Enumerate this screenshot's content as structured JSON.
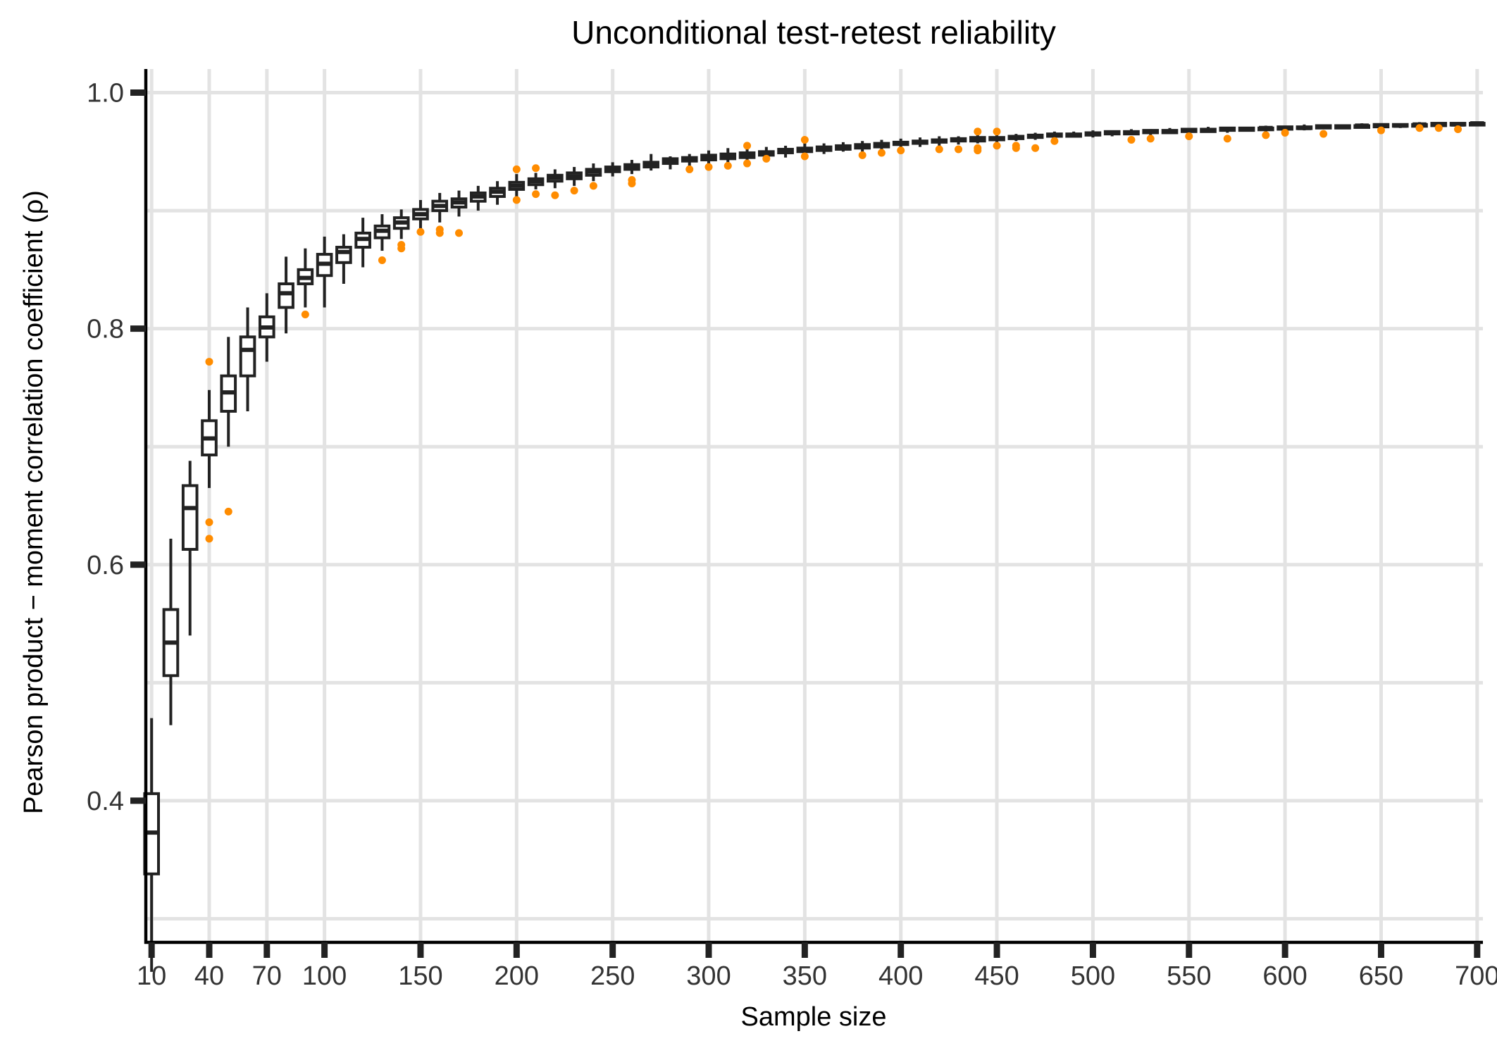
{
  "chart_data": {
    "type": "box",
    "title": "Unconditional test-retest reliability",
    "xlabel": "Sample size",
    "ylabel": "Pearson product − moment correlation coefficient  (ρ)",
    "xlim": [
      7,
      703
    ],
    "ylim": [
      0.28,
      1.02
    ],
    "x_ticks": [
      10,
      40,
      70,
      100,
      150,
      200,
      250,
      300,
      350,
      400,
      450,
      500,
      550,
      600,
      650,
      700
    ],
    "x_tick_labels": [
      "10",
      "40",
      "70",
      "100",
      "150",
      "200",
      "250",
      "300",
      "350",
      "400",
      "450",
      "500",
      "550",
      "600",
      "650",
      "700"
    ],
    "y_ticks": [
      0.4,
      0.6,
      0.8,
      1.0
    ],
    "y_tick_labels": [
      "0.4",
      "0.6",
      "0.8",
      "1.0"
    ],
    "y_minor_grid": [
      0.3,
      0.5,
      0.7,
      0.9
    ],
    "grid": true,
    "colors": {
      "box": "#222222",
      "outlier": "#ff8c00",
      "grid": "#e3e3e3"
    },
    "boxes": [
      {
        "x": 10,
        "lo": 0.255,
        "q1": 0.338,
        "med": 0.373,
        "q3": 0.406,
        "hi": 0.47
      },
      {
        "x": 20,
        "lo": 0.464,
        "q1": 0.506,
        "med": 0.534,
        "q3": 0.562,
        "hi": 0.622
      },
      {
        "x": 30,
        "lo": 0.54,
        "q1": 0.613,
        "med": 0.648,
        "q3": 0.667,
        "hi": 0.688
      },
      {
        "x": 40,
        "lo": 0.665,
        "q1": 0.693,
        "med": 0.707,
        "q3": 0.722,
        "hi": 0.748,
        "outliers": [
          0.772,
          0.636,
          0.622
        ]
      },
      {
        "x": 50,
        "lo": 0.7,
        "q1": 0.73,
        "med": 0.746,
        "q3": 0.76,
        "hi": 0.793,
        "outliers": [
          0.645
        ]
      },
      {
        "x": 60,
        "lo": 0.73,
        "q1": 0.76,
        "med": 0.782,
        "q3": 0.793,
        "hi": 0.818
      },
      {
        "x": 70,
        "lo": 0.772,
        "q1": 0.793,
        "med": 0.801,
        "q3": 0.81,
        "hi": 0.83
      },
      {
        "x": 80,
        "lo": 0.796,
        "q1": 0.818,
        "med": 0.83,
        "q3": 0.838,
        "hi": 0.861
      },
      {
        "x": 90,
        "lo": 0.818,
        "q1": 0.838,
        "med": 0.843,
        "q3": 0.85,
        "hi": 0.868,
        "outliers": [
          0.812
        ]
      },
      {
        "x": 100,
        "lo": 0.818,
        "q1": 0.845,
        "med": 0.855,
        "q3": 0.863,
        "hi": 0.878
      },
      {
        "x": 110,
        "lo": 0.838,
        "q1": 0.856,
        "med": 0.865,
        "q3": 0.869,
        "hi": 0.88
      },
      {
        "x": 120,
        "lo": 0.852,
        "q1": 0.869,
        "med": 0.876,
        "q3": 0.881,
        "hi": 0.894
      },
      {
        "x": 130,
        "lo": 0.866,
        "q1": 0.877,
        "med": 0.883,
        "q3": 0.887,
        "hi": 0.897,
        "outliers": [
          0.858
        ]
      },
      {
        "x": 140,
        "lo": 0.876,
        "q1": 0.885,
        "med": 0.89,
        "q3": 0.894,
        "hi": 0.901,
        "outliers": [
          0.871,
          0.868
        ]
      },
      {
        "x": 150,
        "lo": 0.884,
        "q1": 0.893,
        "med": 0.897,
        "q3": 0.901,
        "hi": 0.909,
        "outliers": [
          0.882
        ]
      },
      {
        "x": 160,
        "lo": 0.89,
        "q1": 0.9,
        "med": 0.904,
        "q3": 0.908,
        "hi": 0.915,
        "outliers": [
          0.884,
          0.881
        ]
      },
      {
        "x": 170,
        "lo": 0.895,
        "q1": 0.903,
        "med": 0.907,
        "q3": 0.91,
        "hi": 0.917,
        "outliers": [
          0.881
        ]
      },
      {
        "x": 180,
        "lo": 0.9,
        "q1": 0.908,
        "med": 0.912,
        "q3": 0.915,
        "hi": 0.921
      },
      {
        "x": 190,
        "lo": 0.905,
        "q1": 0.912,
        "med": 0.916,
        "q3": 0.919,
        "hi": 0.925
      },
      {
        "x": 200,
        "lo": 0.912,
        "q1": 0.918,
        "med": 0.921,
        "q3": 0.924,
        "hi": 0.931,
        "outliers": [
          0.935,
          0.909
        ]
      },
      {
        "x": 210,
        "lo": 0.918,
        "q1": 0.922,
        "med": 0.925,
        "q3": 0.927,
        "hi": 0.932,
        "outliers": [
          0.936,
          0.914
        ]
      },
      {
        "x": 220,
        "lo": 0.919,
        "q1": 0.925,
        "med": 0.928,
        "q3": 0.93,
        "hi": 0.935,
        "outliers": [
          0.913
        ]
      },
      {
        "x": 230,
        "lo": 0.921,
        "q1": 0.927,
        "med": 0.929,
        "q3": 0.932,
        "hi": 0.937,
        "outliers": [
          0.917
        ]
      },
      {
        "x": 240,
        "lo": 0.925,
        "q1": 0.93,
        "med": 0.933,
        "q3": 0.935,
        "hi": 0.94,
        "outliers": [
          0.921
        ]
      },
      {
        "x": 250,
        "lo": 0.929,
        "q1": 0.933,
        "med": 0.935,
        "q3": 0.937,
        "hi": 0.941
      },
      {
        "x": 260,
        "lo": 0.931,
        "q1": 0.935,
        "med": 0.937,
        "q3": 0.939,
        "hi": 0.943,
        "outliers": [
          0.926,
          0.923
        ]
      },
      {
        "x": 270,
        "lo": 0.934,
        "q1": 0.937,
        "med": 0.939,
        "q3": 0.941,
        "hi": 0.948
      },
      {
        "x": 280,
        "lo": 0.935,
        "q1": 0.94,
        "med": 0.942,
        "q3": 0.944,
        "hi": 0.946
      },
      {
        "x": 290,
        "lo": 0.937,
        "q1": 0.942,
        "med": 0.944,
        "q3": 0.945,
        "hi": 0.948,
        "outliers": [
          0.935
        ]
      },
      {
        "x": 300,
        "lo": 0.939,
        "q1": 0.943,
        "med": 0.945,
        "q3": 0.947,
        "hi": 0.951,
        "outliers": [
          0.937
        ]
      },
      {
        "x": 310,
        "lo": 0.94,
        "q1": 0.944,
        "med": 0.946,
        "q3": 0.948,
        "hi": 0.953,
        "outliers": [
          0.938
        ]
      },
      {
        "x": 320,
        "lo": 0.942,
        "q1": 0.945,
        "med": 0.947,
        "q3": 0.949,
        "hi": 0.953,
        "outliers": [
          0.955,
          0.94
        ]
      },
      {
        "x": 330,
        "lo": 0.943,
        "q1": 0.947,
        "med": 0.949,
        "q3": 0.95,
        "hi": 0.954,
        "outliers": [
          0.944
        ]
      },
      {
        "x": 340,
        "lo": 0.945,
        "q1": 0.949,
        "med": 0.95,
        "q3": 0.952,
        "hi": 0.955
      },
      {
        "x": 350,
        "lo": 0.946,
        "q1": 0.95,
        "med": 0.952,
        "q3": 0.953,
        "hi": 0.957,
        "outliers": [
          0.96,
          0.946
        ]
      },
      {
        "x": 360,
        "lo": 0.948,
        "q1": 0.951,
        "med": 0.953,
        "q3": 0.954,
        "hi": 0.957
      },
      {
        "x": 370,
        "lo": 0.95,
        "q1": 0.952,
        "med": 0.954,
        "q3": 0.955,
        "hi": 0.958
      },
      {
        "x": 380,
        "lo": 0.95,
        "q1": 0.953,
        "med": 0.955,
        "q3": 0.956,
        "hi": 0.959,
        "outliers": [
          0.947
        ]
      },
      {
        "x": 390,
        "lo": 0.951,
        "q1": 0.954,
        "med": 0.956,
        "q3": 0.957,
        "hi": 0.96,
        "outliers": [
          0.949
        ]
      },
      {
        "x": 400,
        "lo": 0.953,
        "q1": 0.956,
        "med": 0.957,
        "q3": 0.958,
        "hi": 0.961,
        "outliers": [
          0.951
        ]
      },
      {
        "x": 410,
        "lo": 0.954,
        "q1": 0.957,
        "med": 0.958,
        "q3": 0.959,
        "hi": 0.962
      },
      {
        "x": 420,
        "lo": 0.955,
        "q1": 0.958,
        "med": 0.959,
        "q3": 0.96,
        "hi": 0.963,
        "outliers": [
          0.952
        ]
      },
      {
        "x": 430,
        "lo": 0.956,
        "q1": 0.959,
        "med": 0.96,
        "q3": 0.961,
        "hi": 0.963,
        "outliers": [
          0.952
        ]
      },
      {
        "x": 440,
        "lo": 0.957,
        "q1": 0.959,
        "med": 0.961,
        "q3": 0.962,
        "hi": 0.964,
        "outliers": [
          0.967,
          0.953,
          0.951
        ]
      },
      {
        "x": 450,
        "lo": 0.958,
        "q1": 0.96,
        "med": 0.961,
        "q3": 0.962,
        "hi": 0.965,
        "outliers": [
          0.967,
          0.955
        ]
      },
      {
        "x": 460,
        "lo": 0.959,
        "q1": 0.961,
        "med": 0.962,
        "q3": 0.963,
        "hi": 0.965,
        "outliers": [
          0.955,
          0.953
        ]
      },
      {
        "x": 470,
        "lo": 0.96,
        "q1": 0.962,
        "med": 0.963,
        "q3": 0.964,
        "hi": 0.966,
        "outliers": [
          0.953
        ]
      },
      {
        "x": 480,
        "lo": 0.961,
        "q1": 0.963,
        "med": 0.964,
        "q3": 0.965,
        "hi": 0.967,
        "outliers": [
          0.959
        ]
      },
      {
        "x": 490,
        "lo": 0.962,
        "q1": 0.963,
        "med": 0.964,
        "q3": 0.965,
        "hi": 0.967
      },
      {
        "x": 500,
        "lo": 0.962,
        "q1": 0.964,
        "med": 0.965,
        "q3": 0.966,
        "hi": 0.968
      },
      {
        "x": 510,
        "lo": 0.963,
        "q1": 0.965,
        "med": 0.966,
        "q3": 0.967,
        "hi": 0.968
      },
      {
        "x": 520,
        "lo": 0.964,
        "q1": 0.965,
        "med": 0.966,
        "q3": 0.967,
        "hi": 0.969,
        "outliers": [
          0.96
        ]
      },
      {
        "x": 530,
        "lo": 0.964,
        "q1": 0.966,
        "med": 0.967,
        "q3": 0.968,
        "hi": 0.969,
        "outliers": [
          0.961
        ]
      },
      {
        "x": 540,
        "lo": 0.965,
        "q1": 0.966,
        "med": 0.967,
        "q3": 0.968,
        "hi": 0.97
      },
      {
        "x": 550,
        "lo": 0.965,
        "q1": 0.967,
        "med": 0.968,
        "q3": 0.969,
        "hi": 0.97,
        "outliers": [
          0.963
        ]
      },
      {
        "x": 560,
        "lo": 0.966,
        "q1": 0.967,
        "med": 0.968,
        "q3": 0.969,
        "hi": 0.971
      },
      {
        "x": 570,
        "lo": 0.966,
        "q1": 0.968,
        "med": 0.969,
        "q3": 0.97,
        "hi": 0.971,
        "outliers": [
          0.961
        ]
      },
      {
        "x": 580,
        "lo": 0.967,
        "q1": 0.968,
        "med": 0.969,
        "q3": 0.97,
        "hi": 0.971
      },
      {
        "x": 590,
        "lo": 0.967,
        "q1": 0.969,
        "med": 0.97,
        "q3": 0.97,
        "hi": 0.972,
        "outliers": [
          0.964
        ]
      },
      {
        "x": 600,
        "lo": 0.968,
        "q1": 0.969,
        "med": 0.97,
        "q3": 0.971,
        "hi": 0.972,
        "outliers": [
          0.966
        ]
      },
      {
        "x": 610,
        "lo": 0.968,
        "q1": 0.97,
        "med": 0.97,
        "q3": 0.971,
        "hi": 0.973
      },
      {
        "x": 620,
        "lo": 0.969,
        "q1": 0.97,
        "med": 0.971,
        "q3": 0.972,
        "hi": 0.973,
        "outliers": [
          0.965
        ]
      },
      {
        "x": 630,
        "lo": 0.969,
        "q1": 0.97,
        "med": 0.971,
        "q3": 0.972,
        "hi": 0.973
      },
      {
        "x": 640,
        "lo": 0.97,
        "q1": 0.971,
        "med": 0.972,
        "q3": 0.972,
        "hi": 0.974
      },
      {
        "x": 650,
        "lo": 0.97,
        "q1": 0.971,
        "med": 0.972,
        "q3": 0.973,
        "hi": 0.974,
        "outliers": [
          0.968
        ]
      },
      {
        "x": 660,
        "lo": 0.97,
        "q1": 0.972,
        "med": 0.972,
        "q3": 0.973,
        "hi": 0.974
      },
      {
        "x": 670,
        "lo": 0.971,
        "q1": 0.972,
        "med": 0.973,
        "q3": 0.973,
        "hi": 0.975,
        "outliers": [
          0.97
        ]
      },
      {
        "x": 680,
        "lo": 0.971,
        "q1": 0.972,
        "med": 0.973,
        "q3": 0.974,
        "hi": 0.975,
        "outliers": [
          0.97
        ]
      },
      {
        "x": 690,
        "lo": 0.972,
        "q1": 0.973,
        "med": 0.973,
        "q3": 0.974,
        "hi": 0.975,
        "outliers": [
          0.969
        ]
      },
      {
        "x": 700,
        "lo": 0.972,
        "q1": 0.973,
        "med": 0.974,
        "q3": 0.974,
        "hi": 0.975
      }
    ]
  }
}
